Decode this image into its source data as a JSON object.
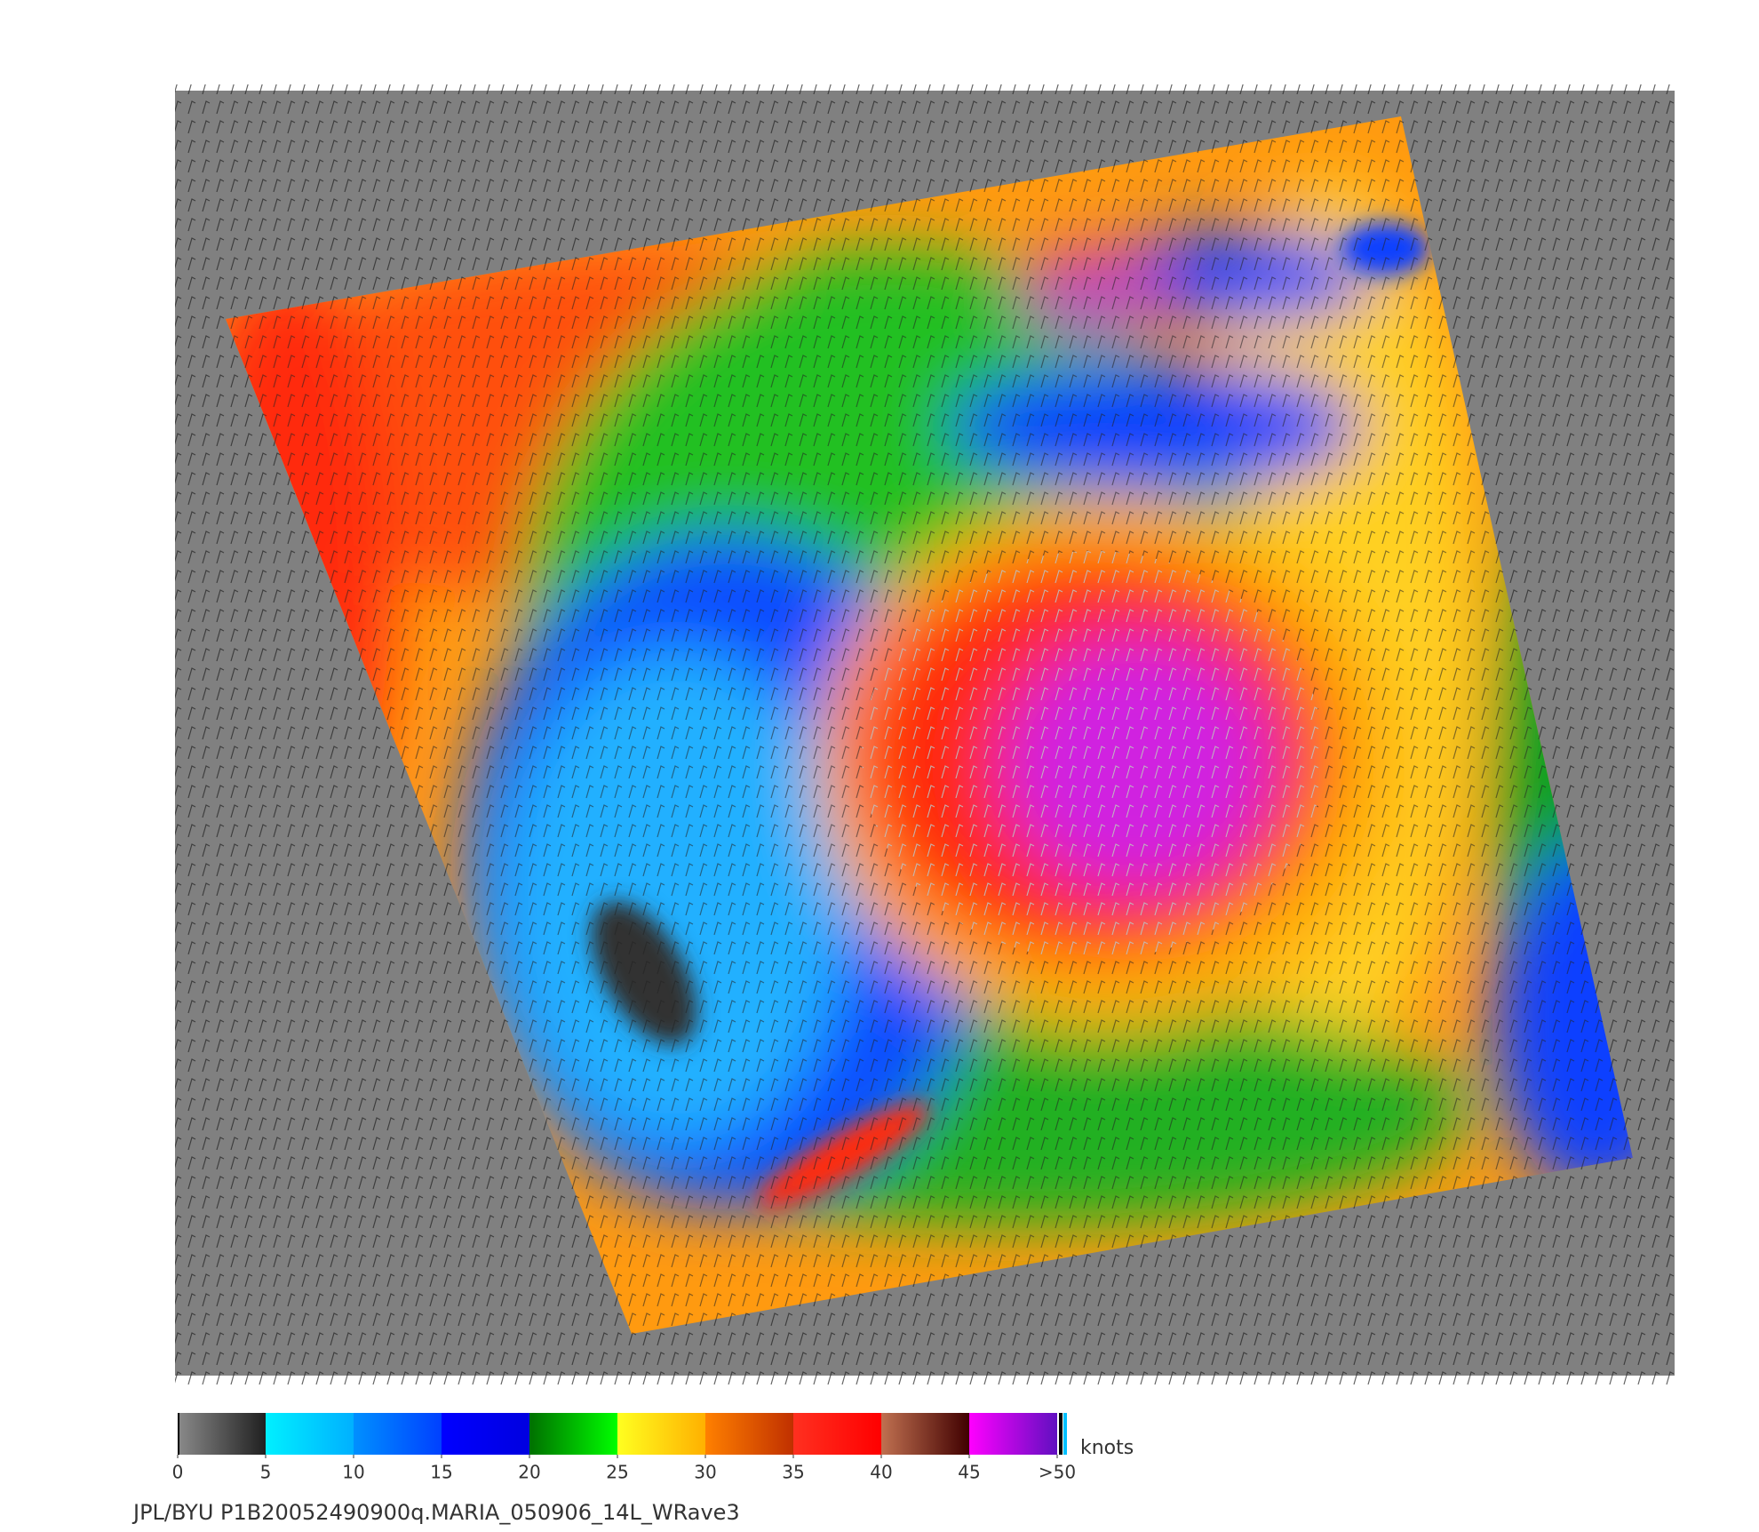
{
  "colorbar": {
    "ticks": [
      0,
      5,
      10,
      15,
      20,
      25,
      30,
      35,
      40,
      45,
      {
        "value": 50,
        "label": ">50"
      }
    ],
    "colors": [
      [
        "#8a8a8a",
        "#202020"
      ],
      [
        "#00f0ff",
        "#00b0ff"
      ],
      [
        "#0090ff",
        "#0040ff"
      ],
      [
        "#0000ff",
        "#0000e0"
      ],
      [
        "#007000",
        "#00ff00"
      ],
      [
        "#ffff20",
        "#ffb000"
      ],
      [
        "#ff8000",
        "#c03000"
      ],
      [
        "#ff3020",
        "#ff0000"
      ],
      [
        "#c07050",
        "#400000"
      ],
      [
        "#ff00ff",
        "#6010c0"
      ]
    ],
    "unit": "knots"
  },
  "footer": "JPL/BYU  P1B20052490900q.MARIA_050906_14L_WRave3"
}
